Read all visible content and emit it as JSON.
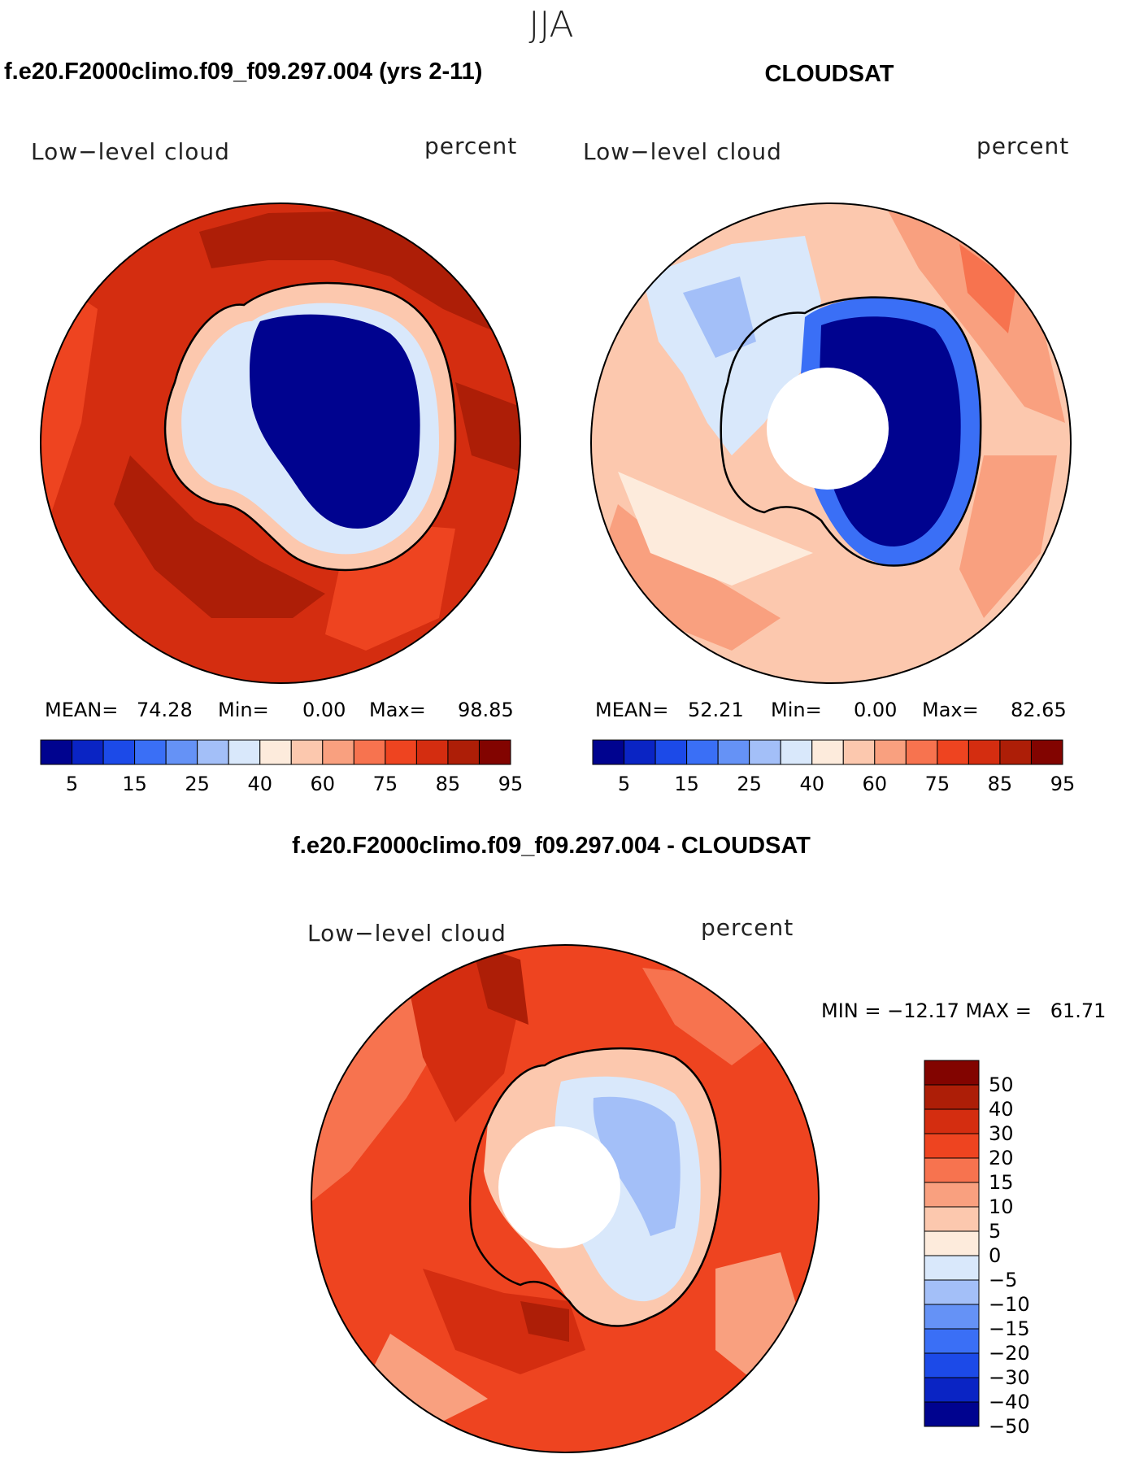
{
  "figure": {
    "season": "JJA",
    "panels": {
      "model": {
        "title": "f.e20.F2000climo.f09_f09.297.004 (yrs 2-11)",
        "left_label": "Low−level cloud",
        "right_label": "percent",
        "stats": {
          "mean_label": "MEAN=",
          "mean": "74.28",
          "min_label": "Min=",
          "min": "0.00",
          "max_label": "Max=",
          "max": "98.85"
        }
      },
      "obs": {
        "title": "CLOUDSAT",
        "left_label": "Low−level cloud",
        "right_label": "percent",
        "stats": {
          "mean_label": "MEAN=",
          "mean": "52.21",
          "min_label": "Min=",
          "min": "0.00",
          "max_label": "Max=",
          "max": "82.65"
        }
      },
      "diff": {
        "title": "f.e20.F2000climo.f09_f09.297.004 - CLOUDSAT",
        "left_label": "Low−level cloud",
        "right_label": "percent",
        "minmax": "MIN = −12.17 MAX =   61.71"
      }
    }
  },
  "colors": {
    "abs_scale": [
      "#00038f",
      "#0a24c4",
      "#1c4ae8",
      "#3a6ff6",
      "#6592f6",
      "#a3bff8",
      "#d9e8fb",
      "#fdebdc",
      "#fcc8ae",
      "#f9a07f",
      "#f7734f",
      "#ee4420",
      "#d42d10",
      "#ad1e07",
      "#820400"
    ],
    "diff_scale": [
      "#00038f",
      "#0a24c4",
      "#1c4ae8",
      "#3a6ff6",
      "#6592f6",
      "#a3bff8",
      "#d9e8fb",
      "#fdebdc",
      "#fcc8ae",
      "#f9a07f",
      "#f7734f",
      "#ee4420",
      "#d42d10",
      "#ad1e07",
      "#820400"
    ]
  },
  "chart_data": [
    {
      "type": "heatmap",
      "projection": "south-polar-stereographic",
      "title": "f.e20.F2000climo.f09_f09.297.004 (yrs 2-11)",
      "field": "Low-level cloud",
      "units": "percent",
      "mean": 74.28,
      "min": 0.0,
      "max": 98.85,
      "levels": [
        5,
        10,
        15,
        20,
        25,
        30,
        40,
        50,
        60,
        70,
        75,
        80,
        85,
        90,
        95
      ],
      "colorbar_ticks": [
        "5",
        "15",
        "25",
        "40",
        "60",
        "75",
        "85",
        "95"
      ],
      "regions": {
        "southern_ocean": 88,
        "antarctic_coast": 40,
        "antarctic_interior": 2
      },
      "missing_polar_cap": false
    },
    {
      "type": "heatmap",
      "projection": "south-polar-stereographic",
      "title": "CLOUDSAT",
      "field": "Low-level cloud",
      "units": "percent",
      "mean": 52.21,
      "min": 0.0,
      "max": 82.65,
      "levels": [
        5,
        10,
        15,
        20,
        25,
        30,
        40,
        50,
        60,
        70,
        75,
        80,
        85,
        90,
        95
      ],
      "colorbar_ticks": [
        "5",
        "15",
        "25",
        "40",
        "60",
        "75",
        "85",
        "95"
      ],
      "regions": {
        "southern_ocean": 65,
        "west_antarctica": 45,
        "east_antarctica_interior": 3
      },
      "missing_polar_cap": true
    },
    {
      "type": "heatmap",
      "projection": "south-polar-stereographic",
      "title": "f.e20.F2000climo.f09_f09.297.004 - CLOUDSAT",
      "field": "Low-level cloud",
      "units": "percent",
      "min": -12.17,
      "max": 61.71,
      "levels": [
        -50,
        -40,
        -30,
        -20,
        -15,
        -10,
        -5,
        0,
        5,
        10,
        15,
        20,
        30,
        40,
        50
      ],
      "colorbar_ticks": [
        "50",
        "40",
        "30",
        "20",
        "15",
        "10",
        "5",
        "0",
        "−5",
        "−10",
        "−15",
        "−20",
        "−30",
        "−40",
        "−50"
      ],
      "regions": {
        "southern_ocean": 30,
        "weddell_ross_seas": 45,
        "east_antarctica_interior": -3
      },
      "missing_polar_cap": true
    }
  ]
}
